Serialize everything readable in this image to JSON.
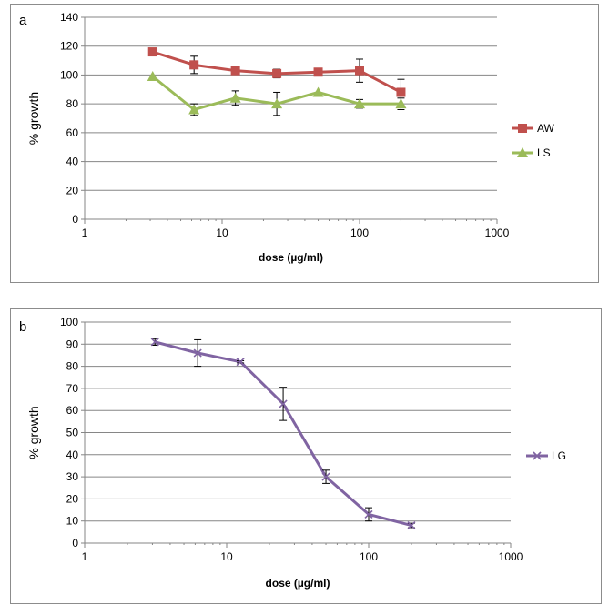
{
  "chart_data": [
    {
      "id": "a",
      "type": "line",
      "title": "a",
      "xlabel": "dose (µg/ml)",
      "ylabel": "% growth",
      "xscale": "log",
      "xlim": [
        1,
        1000
      ],
      "ylim": [
        0,
        140
      ],
      "xticks": [
        1,
        10,
        100,
        1000
      ],
      "xtick_labels": [
        "1",
        "10",
        "100",
        "1000"
      ],
      "yticks": [
        0,
        20,
        40,
        60,
        80,
        100,
        120,
        140
      ],
      "ytick_labels": [
        "0",
        "20",
        "40",
        "60",
        "80",
        "100",
        "120",
        "140"
      ],
      "grid": "horizontal",
      "legend_position": "right",
      "x": [
        3.125,
        6.25,
        12.5,
        25,
        50,
        100,
        200
      ],
      "series": [
        {
          "name": "AW",
          "color": "#c0504d",
          "marker": "square",
          "values": [
            116,
            107,
            103,
            101,
            102,
            103,
            88
          ],
          "errors": [
            0,
            6,
            0,
            3,
            0,
            8,
            9
          ]
        },
        {
          "name": "LS",
          "color": "#9bbb59",
          "marker": "triangle",
          "values": [
            99,
            76,
            84,
            80,
            88,
            80,
            80
          ],
          "errors": [
            0,
            4,
            5,
            8,
            0,
            3,
            4
          ]
        }
      ]
    },
    {
      "id": "b",
      "type": "line",
      "title": "b",
      "xlabel": "dose (µg/ml)",
      "ylabel": "% growth",
      "xscale": "log",
      "xlim": [
        1,
        1000
      ],
      "ylim": [
        0,
        100
      ],
      "xticks": [
        1,
        10,
        100,
        1000
      ],
      "xtick_labels": [
        "1",
        "10",
        "100",
        "1000"
      ],
      "yticks": [
        0,
        10,
        20,
        30,
        40,
        50,
        60,
        70,
        80,
        90,
        100
      ],
      "ytick_labels": [
        "0",
        "10",
        "20",
        "30",
        "40",
        "50",
        "60",
        "70",
        "80",
        "90",
        "100"
      ],
      "grid": "horizontal",
      "legend_position": "right",
      "x": [
        3.125,
        6.25,
        12.5,
        25,
        50,
        100,
        200
      ],
      "series": [
        {
          "name": "LG",
          "color": "#8064a2",
          "marker": "x",
          "values": [
            91,
            86,
            82,
            63,
            30,
            13,
            8
          ],
          "errors": [
            1.5,
            6,
            0.5,
            7.5,
            3,
            3,
            1
          ]
        }
      ]
    }
  ]
}
